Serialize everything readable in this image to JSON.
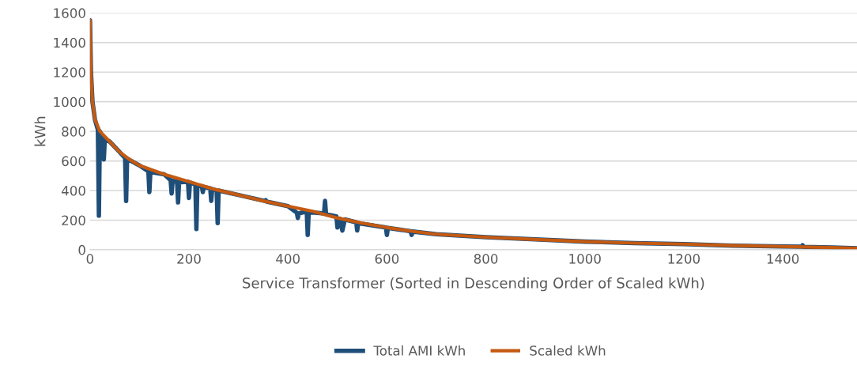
{
  "chart_data": {
    "type": "line",
    "xlabel": "Service Transformer (Sorted in Descending Order of Scaled kWh)",
    "ylabel": "kWh",
    "xlim": [
      0,
      1550
    ],
    "xticks": [
      0,
      200,
      400,
      600,
      800,
      1000,
      1200,
      1400
    ],
    "ylim": [
      0,
      1600
    ],
    "yticks": [
      0,
      200,
      400,
      600,
      800,
      1000,
      1200,
      1400,
      1600
    ],
    "grid": "y",
    "legend": "bottom",
    "marker": "none",
    "line_style": "solid",
    "series": [
      {
        "name": "Total AMI kWh",
        "color": "#1f4e79",
        "x": [
          0,
          2,
          5,
          10,
          16,
          18,
          20,
          26,
          28,
          30,
          40,
          60,
          71,
          73,
          75,
          100,
          118,
          120,
          122,
          150,
          163,
          165,
          167,
          176,
          178,
          180,
          198,
          200,
          202,
          213,
          215,
          217,
          226,
          228,
          230,
          243,
          245,
          247,
          256,
          258,
          260,
          300,
          353,
          355,
          357,
          400,
          418,
          420,
          422,
          438,
          440,
          442,
          473,
          475,
          477,
          498,
          500,
          505,
          510,
          515,
          538,
          540,
          542,
          598,
          600,
          602,
          648,
          650,
          652,
          700,
          800,
          900,
          1000,
          1100,
          1200,
          1300,
          1400,
          1438,
          1440,
          1442,
          1500,
          1550
        ],
        "values": [
          1550,
          1200,
          1000,
          880,
          810,
          230,
          800,
          760,
          610,
          750,
          730,
          660,
          620,
          330,
          615,
          570,
          530,
          390,
          525,
          510,
          470,
          380,
          465,
          460,
          320,
          455,
          460,
          350,
          455,
          440,
          140,
          435,
          430,
          390,
          425,
          415,
          330,
          410,
          400,
          180,
          400,
          370,
          330,
          335,
          325,
          295,
          250,
          215,
          245,
          260,
          100,
          255,
          245,
          330,
          240,
          225,
          150,
          210,
          130,
          205,
          185,
          130,
          180,
          150,
          100,
          148,
          125,
          100,
          123,
          105,
          85,
          70,
          55,
          45,
          38,
          28,
          22,
          21,
          30,
          20,
          15,
          10
        ]
      },
      {
        "name": "Scaled kWh",
        "color": "#c55a11",
        "x": [
          0,
          2,
          5,
          10,
          20,
          40,
          60,
          80,
          100,
          150,
          200,
          250,
          300,
          350,
          400,
          450,
          500,
          550,
          600,
          650,
          700,
          800,
          900,
          1000,
          1100,
          1200,
          1300,
          1400,
          1500,
          1550
        ],
        "values": [
          1550,
          1200,
          1000,
          880,
          800,
          730,
          660,
          610,
          570,
          510,
          460,
          410,
          370,
          330,
          295,
          260,
          215,
          180,
          150,
          125,
          105,
          85,
          70,
          55,
          45,
          38,
          28,
          22,
          15,
          10
        ]
      }
    ]
  }
}
